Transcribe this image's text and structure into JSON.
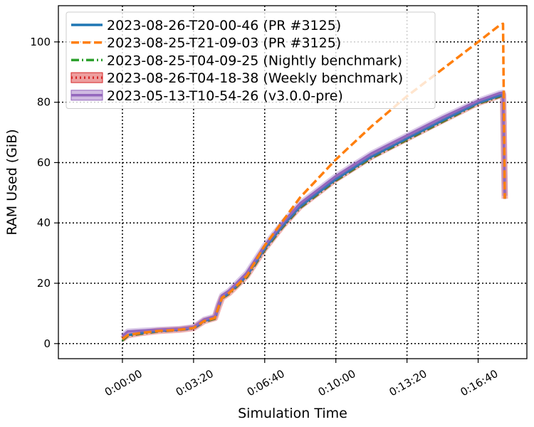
{
  "chart_data": {
    "type": "line",
    "xlabel": "Simulation Time",
    "ylabel": "RAM Used (GiB)",
    "x_unit": "seconds",
    "xlim": [
      -180,
      1137
    ],
    "ylim": [
      -5,
      112
    ],
    "x_ticks": [
      0,
      200,
      400,
      600,
      800,
      1000
    ],
    "x_tick_labels": [
      "0:00:00",
      "0:03:20",
      "0:06:40",
      "0:10:00",
      "0:13:20",
      "0:16:40"
    ],
    "y_ticks": [
      0,
      20,
      40,
      60,
      80,
      100
    ],
    "y_tick_labels": [
      "0",
      "20",
      "40",
      "60",
      "80",
      "100"
    ],
    "grid": true,
    "legend_position": "top-left",
    "series": [
      {
        "name": "2023-08-26-T20-00-46 (PR #3125)",
        "color": "#1f77b4",
        "style": "solid",
        "x": [
          0,
          15,
          50,
          100,
          160,
          200,
          230,
          260,
          270,
          280,
          300,
          350,
          400,
          450,
          500,
          600,
          700,
          800,
          900,
          1000,
          1060,
          1070,
          1075
        ],
        "y": [
          1.5,
          2.8,
          3.5,
          4.2,
          4.6,
          5.2,
          7.5,
          8.5,
          12,
          15.2,
          16.8,
          22.5,
          31.5,
          39,
          45.5,
          54.5,
          62,
          68,
          74,
          79.8,
          82.2,
          82.5,
          48
        ]
      },
      {
        "name": "2023-08-25-T21-09-03 (PR #3125)",
        "color": "#ff7f0e",
        "style": "dashed",
        "x": [
          0,
          15,
          50,
          100,
          160,
          200,
          230,
          260,
          270,
          280,
          300,
          350,
          400,
          500,
          600,
          700,
          800,
          900,
          1000,
          1060,
          1070,
          1075
        ],
        "y": [
          1.5,
          2.8,
          3.5,
          4.2,
          4.6,
          5.2,
          7.5,
          8.5,
          12,
          15.2,
          16.8,
          22.5,
          32.5,
          48.5,
          61,
          72,
          82,
          91,
          100,
          105.5,
          106,
          48
        ]
      },
      {
        "name": "2023-08-25-T04-09-25 (Nightly benchmark)",
        "color": "#2ca02c",
        "style": "dashdot",
        "x": [
          0,
          15,
          50,
          100,
          160,
          200,
          230,
          260,
          270,
          280,
          300,
          350,
          400,
          450,
          500,
          600,
          700,
          800,
          900,
          1000,
          1060,
          1070,
          1075
        ],
        "y": [
          1.0,
          2.5,
          3.2,
          4.0,
          4.5,
          5.0,
          7.2,
          8.2,
          11.8,
          15.0,
          16.5,
          22.0,
          31.0,
          38.5,
          45.0,
          54.0,
          61.5,
          67.5,
          73.5,
          79.5,
          81.8,
          82.2,
          48
        ]
      },
      {
        "name": "2023-08-26-T04-18-38 (Weekly benchmark)",
        "color": "#d62728",
        "style": "dotted",
        "x": [
          0,
          15,
          50,
          100,
          160,
          200,
          230,
          260,
          270,
          280,
          300,
          350,
          400,
          450,
          500,
          600,
          700,
          800,
          900,
          1000,
          1060,
          1070,
          1075
        ],
        "y": [
          1.5,
          2.8,
          3.5,
          4.2,
          4.6,
          5.2,
          7.5,
          8.5,
          12,
          15.2,
          16.8,
          22.5,
          31.5,
          39,
          45.5,
          54.5,
          62,
          68,
          74,
          79.8,
          82.2,
          82.5,
          48
        ]
      },
      {
        "name": "2023-05-13-T10-54-26 (v3.0.0-pre)",
        "color": "#9467bd",
        "style": "solid",
        "x": [
          0,
          15,
          50,
          100,
          160,
          200,
          230,
          260,
          270,
          280,
          300,
          350,
          400,
          450,
          500,
          600,
          700,
          800,
          900,
          1000,
          1060,
          1070,
          1075
        ],
        "y": [
          2.5,
          4.0,
          4.3,
          4.6,
          4.9,
          5.5,
          8.0,
          9.0,
          13,
          16.0,
          17.5,
          23.5,
          32.5,
          40.0,
          46.5,
          55.5,
          63,
          69,
          75,
          80.5,
          83,
          83.2,
          49
        ]
      }
    ]
  }
}
